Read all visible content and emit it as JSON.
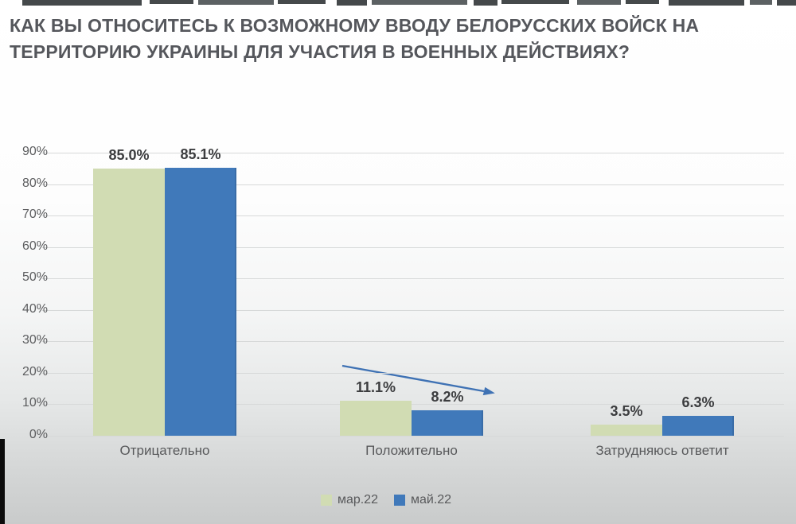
{
  "title": {
    "text": "КАК ВЫ ОТНОСИТЕСЬ К ВОЗМОЖНОМУ ВВОДУ БЕЛОРУССКИХ ВОЙСК НА\nТЕРРИТОРИЮ УКРАИНЫ ДЛЯ УЧАСТИЯ В ВОЕННЫХ ДЕЙСТВИЯХ?",
    "color": "#55575c"
  },
  "chart_data": {
    "type": "bar",
    "categories": [
      "Отрицательно",
      "Положительно",
      "Затрудняюсь ответит"
    ],
    "series": [
      {
        "name": "мар.22",
        "color": "#d1dcb3",
        "values": [
          85.0,
          11.1,
          3.5
        ],
        "labels": [
          "85.0%",
          "11.1%",
          "3.5%"
        ]
      },
      {
        "name": "май.22",
        "color": "#4079ba",
        "values": [
          85.1,
          8.2,
          6.3
        ],
        "labels": [
          "85.1%",
          "8.2%",
          "6.3%"
        ]
      }
    ],
    "y_tick_labels": [
      "90%",
      "80%",
      "70%",
      "60%",
      "50%",
      "40%",
      "30%",
      "20%",
      "10%",
      "0%"
    ],
    "ylim": [
      0,
      90
    ],
    "grid": true,
    "legend_position": "bottom",
    "annotation": {
      "type": "decreasing-trend-arrow",
      "color": "#3f72b4"
    }
  }
}
